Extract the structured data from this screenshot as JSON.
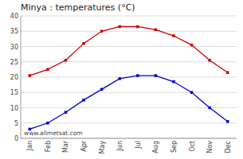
{
  "chart_data": {
    "type": "line",
    "title": "Minya : temperatures (°C)",
    "categories": [
      "Jan",
      "Feb",
      "Mar",
      "Apr",
      "May",
      "Jun",
      "Jul",
      "Aug",
      "Sep",
      "Oct",
      "Nov",
      "Dec"
    ],
    "series": [
      {
        "color": "#cc0000",
        "marker": "square",
        "line_style": "solid",
        "values": [
          20.5,
          22.5,
          25.5,
          31.0,
          35.0,
          36.5,
          36.5,
          35.5,
          33.5,
          30.5,
          25.5,
          21.5
        ]
      },
      {
        "color": "#0000cc",
        "marker": "square",
        "line_style": "solid",
        "values": [
          3.0,
          5.0,
          8.5,
          12.5,
          16.0,
          19.5,
          20.5,
          20.5,
          18.5,
          15.0,
          10.0,
          5.5
        ]
      }
    ],
    "ylim": [
      0,
      40
    ],
    "yticks": [
      0,
      5,
      10,
      15,
      20,
      25,
      30,
      35,
      40
    ],
    "grid": true,
    "annotations": [
      "www.allmetsat.com"
    ]
  }
}
